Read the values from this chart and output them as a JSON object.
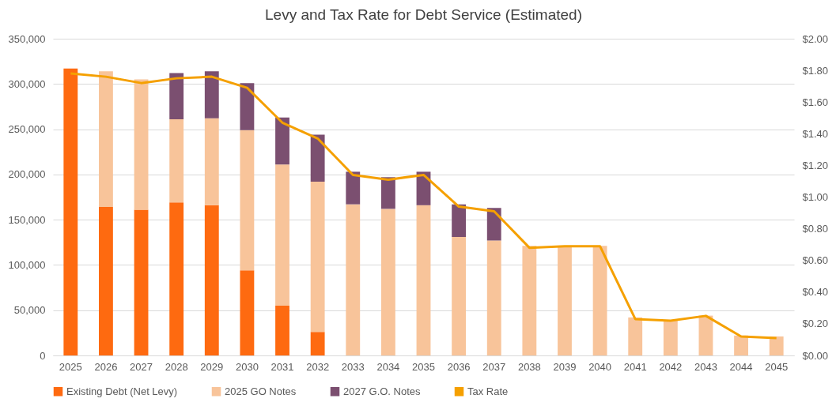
{
  "chart_data": {
    "type": "bar",
    "title": "Levy and Tax Rate for Debt Service (Estimated)",
    "categories": [
      "2025",
      "2026",
      "2027",
      "2028",
      "2029",
      "2030",
      "2031",
      "2032",
      "2033",
      "2034",
      "2035",
      "2036",
      "2037",
      "2038",
      "2039",
      "2040",
      "2041",
      "2042",
      "2043",
      "2044",
      "2045"
    ],
    "stacked": true,
    "series": [
      {
        "name": "Existing Debt (Net Levy)",
        "color": "#fe6a10",
        "values": [
          317000,
          164000,
          161000,
          169000,
          166000,
          94000,
          55000,
          26000,
          null,
          null,
          null,
          null,
          null,
          null,
          null,
          null,
          null,
          null,
          null,
          null,
          null
        ]
      },
      {
        "name": "2025 GO Notes",
        "color": "#f8c49a",
        "values": [
          null,
          150000,
          144000,
          92000,
          96000,
          155000,
          156000,
          166000,
          167000,
          162000,
          166000,
          131000,
          127000,
          121000,
          121000,
          121000,
          42000,
          39000,
          44000,
          22000,
          21000
        ]
      },
      {
        "name": "2027 G.O. Notes",
        "color": "#7b4f70",
        "values": [
          null,
          null,
          null,
          51000,
          52000,
          52000,
          52000,
          52000,
          36000,
          35000,
          37000,
          36000,
          36000,
          null,
          null,
          null,
          null,
          null,
          null,
          null,
          null
        ]
      },
      {
        "name": "Tax Rate",
        "color": "#f5a000",
        "type": "line",
        "axis": "y2",
        "values": [
          1.78,
          1.76,
          1.72,
          1.75,
          1.76,
          1.69,
          1.47,
          1.37,
          1.14,
          1.11,
          1.14,
          0.94,
          0.91,
          0.68,
          0.69,
          0.69,
          0.23,
          0.22,
          0.25,
          0.12,
          0.11
        ]
      }
    ],
    "ylim": [
      0,
      350000
    ],
    "yticks": [
      0,
      {
        "value": 50000,
        "label": "50,000"
      },
      {
        "value": 100000,
        "label": "100,000"
      },
      {
        "value": 150000,
        "label": "150,000"
      },
      {
        "value": 200000,
        "label": "200,000"
      },
      {
        "value": 250000,
        "label": "250,000"
      },
      {
        "value": 300000,
        "label": "300,000"
      },
      {
        "value": 350000,
        "label": "350,000"
      }
    ],
    "y2lim": [
      0,
      2
    ],
    "y2ticks": [
      {
        "value": 0,
        "label": "$0.00"
      },
      {
        "value": 0.2,
        "label": "$0.20"
      },
      {
        "value": 0.4,
        "label": "$0.40"
      },
      {
        "value": 0.6,
        "label": "$0.60"
      },
      {
        "value": 0.8,
        "label": "$0.80"
      },
      {
        "value": 1,
        "label": "$1.00"
      },
      {
        "value": 1.2,
        "label": "$1.20"
      },
      {
        "value": 1.4,
        "label": "$1.40"
      },
      {
        "value": 1.6,
        "label": "$1.60"
      },
      {
        "value": 1.8,
        "label": "$1.80"
      },
      {
        "value": 2,
        "label": "$2.00"
      }
    ],
    "grid": "y",
    "legend": "bottom"
  }
}
